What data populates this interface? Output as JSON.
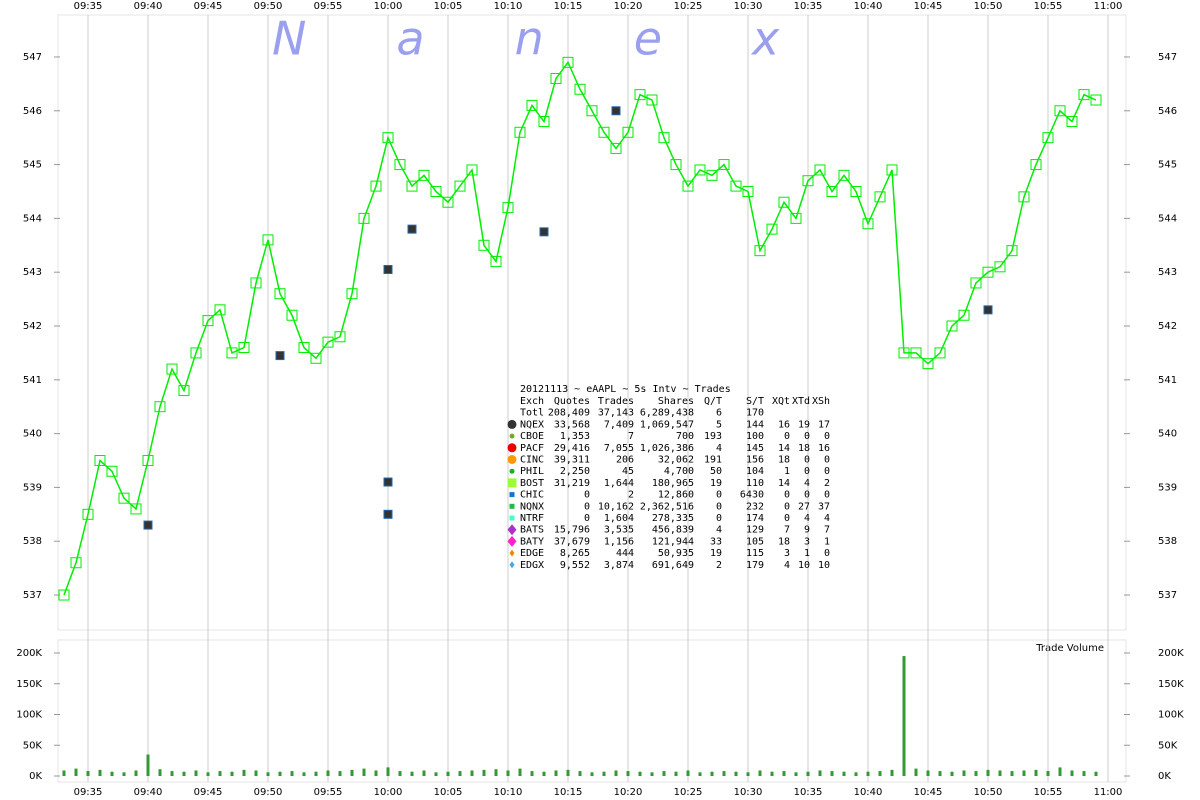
{
  "chart_data": [
    {
      "type": "line",
      "watermark": "Nanex",
      "x": [
        "09:33",
        "09:34",
        "09:35",
        "09:36",
        "09:37",
        "09:38",
        "09:39",
        "09:40",
        "09:41",
        "09:42",
        "09:43",
        "09:44",
        "09:45",
        "09:46",
        "09:47",
        "09:48",
        "09:49",
        "09:50",
        "09:51",
        "09:52",
        "09:53",
        "09:54",
        "09:55",
        "09:56",
        "09:57",
        "09:58",
        "09:59",
        "10:00",
        "10:01",
        "10:02",
        "10:03",
        "10:04",
        "10:05",
        "10:06",
        "10:07",
        "10:08",
        "10:09",
        "10:10",
        "10:11",
        "10:12",
        "10:13",
        "10:14",
        "10:15",
        "10:16",
        "10:17",
        "10:18",
        "10:19",
        "10:20",
        "10:21",
        "10:22",
        "10:23",
        "10:24",
        "10:25",
        "10:26",
        "10:27",
        "10:28",
        "10:29",
        "10:30",
        "10:31",
        "10:32",
        "10:33",
        "10:34",
        "10:35",
        "10:36",
        "10:37",
        "10:38",
        "10:39",
        "10:40",
        "10:41",
        "10:42",
        "10:43",
        "10:44",
        "10:45",
        "10:46",
        "10:47",
        "10:48",
        "10:49",
        "10:50",
        "10:51",
        "10:52",
        "10:53",
        "10:54",
        "10:55",
        "10:56",
        "10:57",
        "10:58",
        "10:59"
      ],
      "series": [
        {
          "color": "#00ee00",
          "values": [
            537.0,
            537.6,
            538.5,
            539.5,
            539.3,
            538.8,
            538.6,
            539.5,
            540.5,
            541.2,
            540.8,
            541.5,
            542.1,
            542.3,
            541.5,
            541.6,
            542.8,
            543.6,
            542.6,
            542.2,
            541.6,
            541.4,
            541.7,
            541.8,
            542.6,
            544.0,
            544.6,
            545.5,
            545.0,
            544.6,
            544.8,
            544.5,
            544.3,
            544.6,
            544.9,
            543.5,
            543.2,
            544.2,
            545.6,
            546.1,
            545.8,
            546.6,
            546.9,
            546.4,
            546.0,
            545.6,
            545.3,
            545.6,
            546.3,
            546.2,
            545.5,
            545.0,
            544.6,
            544.9,
            544.8,
            545.0,
            544.6,
            544.5,
            543.4,
            543.8,
            544.3,
            544.0,
            544.7,
            544.9,
            544.5,
            544.8,
            544.5,
            543.9,
            544.4,
            544.9,
            541.5,
            541.5,
            541.3,
            541.5,
            542.0,
            542.2,
            542.8,
            543.0,
            543.1,
            543.4,
            544.4,
            545.0,
            545.5,
            546.0,
            545.8,
            546.3,
            546.2
          ]
        }
      ],
      "outliers": {
        "color": "#333333",
        "x": [
          "09:40",
          "09:51",
          "10:00",
          "10:00",
          "10:00",
          "10:02",
          "10:13",
          "10:19",
          "10:50"
        ],
        "values": [
          538.3,
          541.45,
          543.05,
          539.1,
          538.5,
          543.8,
          543.75,
          546.0,
          542.3
        ]
      },
      "xlim": [
        "09:33",
        "11:01"
      ],
      "xticks": [
        "09:35",
        "09:40",
        "09:45",
        "09:50",
        "09:55",
        "10:00",
        "10:05",
        "10:10",
        "10:15",
        "10:20",
        "10:25",
        "10:30",
        "10:35",
        "10:40",
        "10:45",
        "10:50",
        "10:55",
        "11:00"
      ],
      "ylim": [
        536.35,
        547.78
      ],
      "yticks": [
        537,
        538,
        539,
        540,
        541,
        542,
        543,
        544,
        545,
        546,
        547
      ],
      "grid": true,
      "stats": {
        "title": "20121113 ~ eAAPL ~ 5s Intv ~ Trades",
        "columns": [
          "Exch",
          "Quotes",
          "Trades",
          "Shares",
          "Q/T",
          "S/T",
          "XQt",
          "XTd",
          "XSh"
        ],
        "rows": [
          {
            "cells": [
              "Totl",
              "208,409",
              "37,143",
              "6,289,438",
              "6",
              "170"
            ]
          },
          {
            "marker": "circle",
            "color": "#333333",
            "cells": [
              "NQEX",
              "33,568",
              "7,409",
              "1,069,547",
              "5",
              "144",
              "16",
              "19",
              "17"
            ]
          },
          {
            "marker": "circle-small",
            "color": "#77aa22",
            "cells": [
              "CBOE",
              "1,353",
              "7",
              "700",
              "193",
              "100",
              "0",
              "0",
              "0"
            ]
          },
          {
            "marker": "circle",
            "color": "#ee0000",
            "cells": [
              "PACF",
              "29,416",
              "7,055",
              "1,026,386",
              "4",
              "145",
              "14",
              "18",
              "16"
            ]
          },
          {
            "marker": "circle",
            "color": "#ff9900",
            "cells": [
              "CINC",
              "39,311",
              "206",
              "32,062",
              "191",
              "156",
              "18",
              "0",
              "0"
            ]
          },
          {
            "marker": "circle-small",
            "color": "#22aa22",
            "cells": [
              "PHIL",
              "2,250",
              "45",
              "4,700",
              "50",
              "104",
              "1",
              "0",
              "0"
            ]
          },
          {
            "marker": "square",
            "color": "#99ff33",
            "cells": [
              "BOST",
              "31,219",
              "1,644",
              "180,965",
              "19",
              "110",
              "14",
              "4",
              "2"
            ]
          },
          {
            "marker": "square-small",
            "color": "#1177cc",
            "cells": [
              "CHIC",
              "0",
              "2",
              "12,860",
              "0",
              "6430",
              "0",
              "0",
              "0"
            ]
          },
          {
            "marker": "square-small",
            "color": "#22bb44",
            "cells": [
              "NQNX",
              "0",
              "10,162",
              "2,362,516",
              "0",
              "232",
              "0",
              "27",
              "37"
            ]
          },
          {
            "marker": "square-small",
            "color": "#44ffcc",
            "cells": [
              "NTRF",
              "0",
              "1,604",
              "278,335",
              "0",
              "174",
              "0",
              "4",
              "4"
            ]
          },
          {
            "marker": "diamond",
            "color": "#aa33cc",
            "cells": [
              "BATS",
              "15,796",
              "3,535",
              "456,839",
              "4",
              "129",
              "7",
              "9",
              "7"
            ]
          },
          {
            "marker": "diamond",
            "color": "#ff22cc",
            "cells": [
              "BATY",
              "37,679",
              "1,156",
              "121,944",
              "33",
              "105",
              "18",
              "3",
              "1"
            ]
          },
          {
            "marker": "diamond-small",
            "color": "#ee8800",
            "cells": [
              "EDGE",
              "8,265",
              "444",
              "50,935",
              "19",
              "115",
              "3",
              "1",
              "0"
            ]
          },
          {
            "marker": "diamond-small",
            "color": "#44aadd",
            "cells": [
              "EDGX",
              "9,552",
              "3,874",
              "691,649",
              "2",
              "179",
              "4",
              "10",
              "10"
            ]
          }
        ]
      }
    },
    {
      "type": "bar",
      "title": "Trade Volume",
      "color": "#339933",
      "x": [
        "09:33",
        "09:34",
        "09:35",
        "09:36",
        "09:37",
        "09:38",
        "09:39",
        "09:40",
        "09:41",
        "09:42",
        "09:43",
        "09:44",
        "09:45",
        "09:46",
        "09:47",
        "09:48",
        "09:49",
        "09:50",
        "09:51",
        "09:52",
        "09:53",
        "09:54",
        "09:55",
        "09:56",
        "09:57",
        "09:58",
        "09:59",
        "10:00",
        "10:01",
        "10:02",
        "10:03",
        "10:04",
        "10:05",
        "10:06",
        "10:07",
        "10:08",
        "10:09",
        "10:10",
        "10:11",
        "10:12",
        "10:13",
        "10:14",
        "10:15",
        "10:16",
        "10:17",
        "10:18",
        "10:19",
        "10:20",
        "10:21",
        "10:22",
        "10:23",
        "10:24",
        "10:25",
        "10:26",
        "10:27",
        "10:28",
        "10:29",
        "10:30",
        "10:31",
        "10:32",
        "10:33",
        "10:34",
        "10:35",
        "10:36",
        "10:37",
        "10:38",
        "10:39",
        "10:40",
        "10:41",
        "10:42",
        "10:43",
        "10:44",
        "10:45",
        "10:46",
        "10:47",
        "10:48",
        "10:49",
        "10:50",
        "10:51",
        "10:52",
        "10:53",
        "10:54",
        "10:55",
        "10:56",
        "10:57",
        "10:58",
        "10:59"
      ],
      "values": [
        9000,
        12000,
        8000,
        10000,
        7000,
        6000,
        9000,
        35000,
        11000,
        8000,
        7000,
        9000,
        6000,
        8000,
        7000,
        10000,
        9000,
        6000,
        7000,
        8000,
        6000,
        7000,
        9000,
        8000,
        10000,
        12000,
        9000,
        14000,
        8000,
        7000,
        9000,
        6000,
        7000,
        8000,
        9000,
        10000,
        11000,
        9000,
        12000,
        8000,
        7000,
        9000,
        10000,
        8000,
        6000,
        7000,
        9000,
        8000,
        7000,
        6000,
        8000,
        7000,
        9000,
        6000,
        7000,
        8000,
        7000,
        6000,
        9000,
        7000,
        8000,
        6000,
        7000,
        9000,
        8000,
        7000,
        6000,
        7000,
        8000,
        10000,
        195000,
        12000,
        9000,
        8000,
        7000,
        9000,
        8000,
        10000,
        9000,
        8000,
        9000,
        10000,
        8000,
        14000,
        9000,
        8000,
        7000
      ],
      "xlim": [
        "09:33",
        "11:01"
      ],
      "ylim": [
        0,
        200000
      ],
      "yticks": [
        {
          "value": 0,
          "label": "0K"
        },
        {
          "value": 50000,
          "label": "50K"
        },
        {
          "value": 100000,
          "label": "100K"
        },
        {
          "value": 150000,
          "label": "150K"
        },
        {
          "value": 200000,
          "label": "200K"
        }
      ]
    }
  ]
}
